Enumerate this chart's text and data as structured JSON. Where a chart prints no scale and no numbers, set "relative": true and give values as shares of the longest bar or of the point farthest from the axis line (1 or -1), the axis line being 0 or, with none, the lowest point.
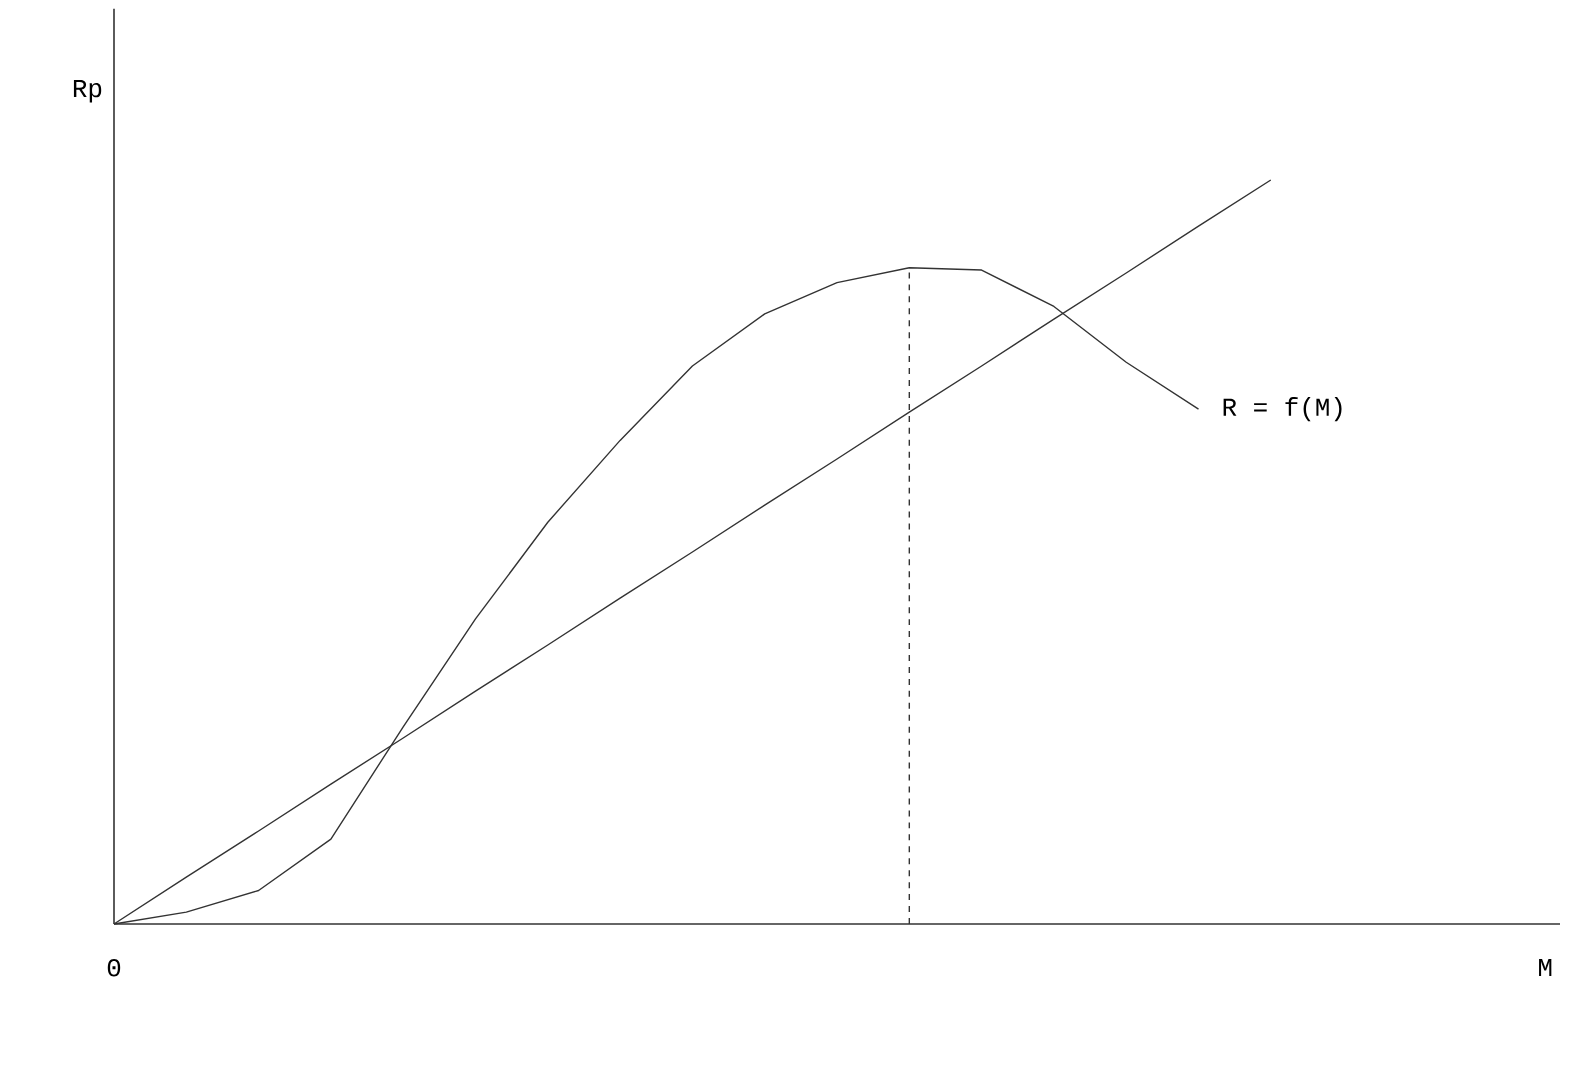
{
  "chart_data": {
    "type": "line",
    "relative": true,
    "ylabel": "Rp",
    "annotations": [
      "0",
      "M"
    ],
    "categories": [
      null,
      null,
      null,
      null,
      null,
      null,
      null,
      null,
      null,
      null,
      null,
      null,
      null,
      null,
      null,
      null,
      null
    ],
    "series": [
      {
        "name": "R = f(M)",
        "color": "#333333",
        "values": [
          0,
          0.016,
          0.045,
          0.114,
          0.265,
          0.41,
          0.54,
          0.65,
          0.75,
          0.82,
          0.862,
          0.882,
          0.879,
          0.83,
          0.755,
          0.692,
          null
        ]
      },
      {
        "color": "#333333",
        "values": [
          0,
          0.063,
          0.125,
          0.188,
          0.25,
          0.313,
          0.375,
          0.438,
          0.5,
          0.563,
          0.625,
          0.688,
          0.75,
          0.813,
          0.875,
          0.938,
          1
        ]
      }
    ]
  }
}
